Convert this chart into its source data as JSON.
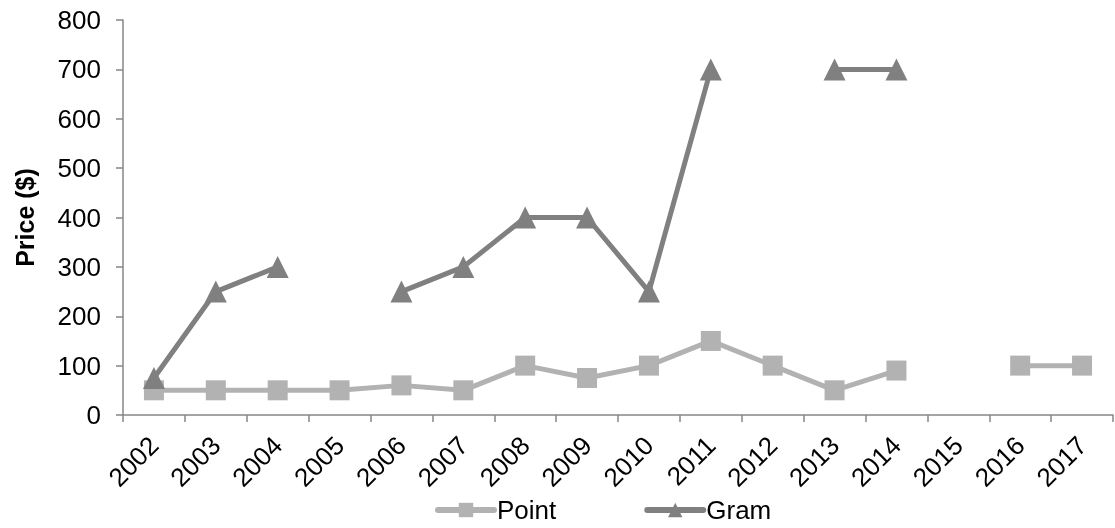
{
  "chart_data": {
    "type": "line",
    "ylabel": "Price ($)",
    "categories": [
      "2002",
      "2003",
      "2004",
      "2005",
      "2006",
      "2007",
      "2008",
      "2009",
      "2010",
      "2011",
      "2012",
      "2013",
      "2014",
      "2015",
      "2016",
      "2017"
    ],
    "series": [
      {
        "name": "Point",
        "color": "#b2b2b2",
        "marker": "square",
        "values": [
          50,
          50,
          50,
          50,
          60,
          50,
          100,
          75,
          100,
          150,
          100,
          50,
          90,
          null,
          100,
          100
        ]
      },
      {
        "name": "Gram",
        "color": "#808080",
        "marker": "triangle",
        "values": [
          75,
          250,
          300,
          null,
          250,
          300,
          400,
          400,
          250,
          700,
          null,
          700,
          700,
          null,
          null,
          null
        ]
      }
    ],
    "ylim": [
      0,
      800
    ],
    "yticks": [
      0,
      100,
      200,
      300,
      400,
      500,
      600,
      700,
      800
    ],
    "grid": false,
    "legend": "bottom",
    "line_style": "solid"
  }
}
